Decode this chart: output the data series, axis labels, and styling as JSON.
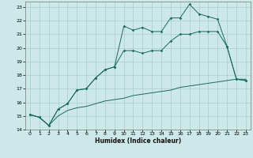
{
  "background_color": "#cce8e8",
  "grid_color": "#aacccc",
  "line_color": "#1a6b5a",
  "xlabel": "Humidex (Indice chaleur)",
  "xlim": [
    -0.5,
    23.5
  ],
  "ylim": [
    14,
    23.4
  ],
  "yticks": [
    14,
    15,
    16,
    17,
    18,
    19,
    20,
    21,
    22,
    23
  ],
  "xticks": [
    0,
    1,
    2,
    3,
    4,
    5,
    6,
    7,
    8,
    9,
    10,
    11,
    12,
    13,
    14,
    15,
    16,
    17,
    18,
    19,
    20,
    21,
    22,
    23
  ],
  "line1_x": [
    0,
    1,
    2,
    3,
    4,
    5,
    6,
    7,
    8,
    9,
    10,
    11,
    12,
    13,
    14,
    15,
    16,
    17,
    18,
    19,
    20,
    21,
    22,
    23
  ],
  "line1_y": [
    15.1,
    14.9,
    14.3,
    15.5,
    15.9,
    16.9,
    17.0,
    17.8,
    18.4,
    18.6,
    21.6,
    21.3,
    21.5,
    21.2,
    21.2,
    22.2,
    22.2,
    23.2,
    22.5,
    22.3,
    22.1,
    20.1,
    17.7,
    17.6
  ],
  "line2_x": [
    0,
    1,
    2,
    3,
    4,
    5,
    6,
    7,
    8,
    9,
    10,
    11,
    12,
    13,
    14,
    15,
    16,
    17,
    18,
    19,
    20,
    21,
    22,
    23
  ],
  "line2_y": [
    15.1,
    14.9,
    14.3,
    15.5,
    15.9,
    16.9,
    17.0,
    17.8,
    18.4,
    18.6,
    19.8,
    19.8,
    19.6,
    19.8,
    19.8,
    20.5,
    21.0,
    21.0,
    21.2,
    21.2,
    21.2,
    20.1,
    17.7,
    17.6
  ],
  "line3_x": [
    0,
    1,
    2,
    3,
    4,
    5,
    6,
    7,
    8,
    9,
    10,
    11,
    12,
    13,
    14,
    15,
    16,
    17,
    18,
    19,
    20,
    21,
    22,
    23
  ],
  "line3_y": [
    15.1,
    14.9,
    14.3,
    15.0,
    15.4,
    15.6,
    15.7,
    15.9,
    16.1,
    16.2,
    16.3,
    16.5,
    16.6,
    16.7,
    16.8,
    16.9,
    17.1,
    17.2,
    17.3,
    17.4,
    17.5,
    17.6,
    17.7,
    17.7
  ]
}
